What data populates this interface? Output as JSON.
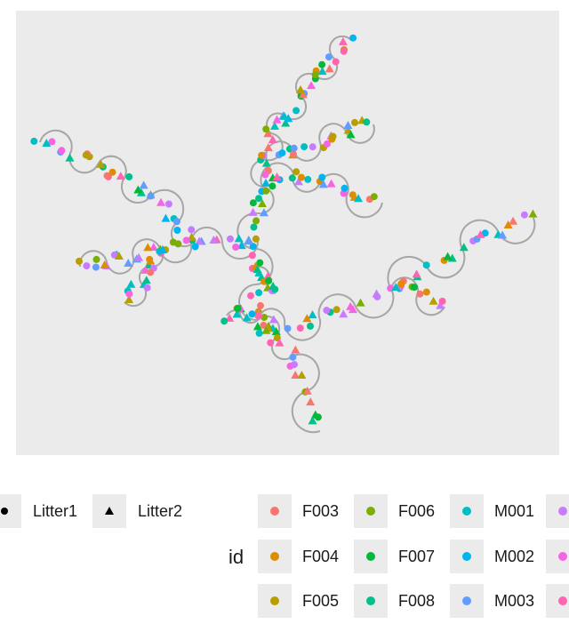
{
  "chart_data": {
    "type": "scatter",
    "subtype": "phylogenetic-fan-tree",
    "title": "",
    "xlabel": "",
    "ylabel": "",
    "grid": false,
    "panel_background": "#ebebeb",
    "branch_color": "#a6a6a6",
    "legend_position": "bottom",
    "shape_legend": {
      "title": "",
      "entries": [
        {
          "label": "Litter1",
          "shape": "circle"
        },
        {
          "label": "Litter2",
          "shape": "triangle"
        }
      ]
    },
    "color_legend": {
      "title": "id",
      "entries": [
        {
          "label": "F003",
          "color": "#F8766D"
        },
        {
          "label": "F004",
          "color": "#DE8C00"
        },
        {
          "label": "F005",
          "color": "#B79F00"
        },
        {
          "label": "F006",
          "color": "#7CAE00"
        },
        {
          "label": "F007",
          "color": "#00BA38"
        },
        {
          "label": "F008",
          "color": "#00C08B"
        },
        {
          "label": "M001",
          "color": "#00BFC4"
        },
        {
          "label": "M002",
          "color": "#00B4F0"
        },
        {
          "label": "M003",
          "color": "#619CFF"
        },
        {
          "label": "",
          "color": "#C77CFF"
        },
        {
          "label": "",
          "color": "#F564E3"
        },
        {
          "label": "",
          "color": "#FF64B0"
        }
      ]
    }
  }
}
